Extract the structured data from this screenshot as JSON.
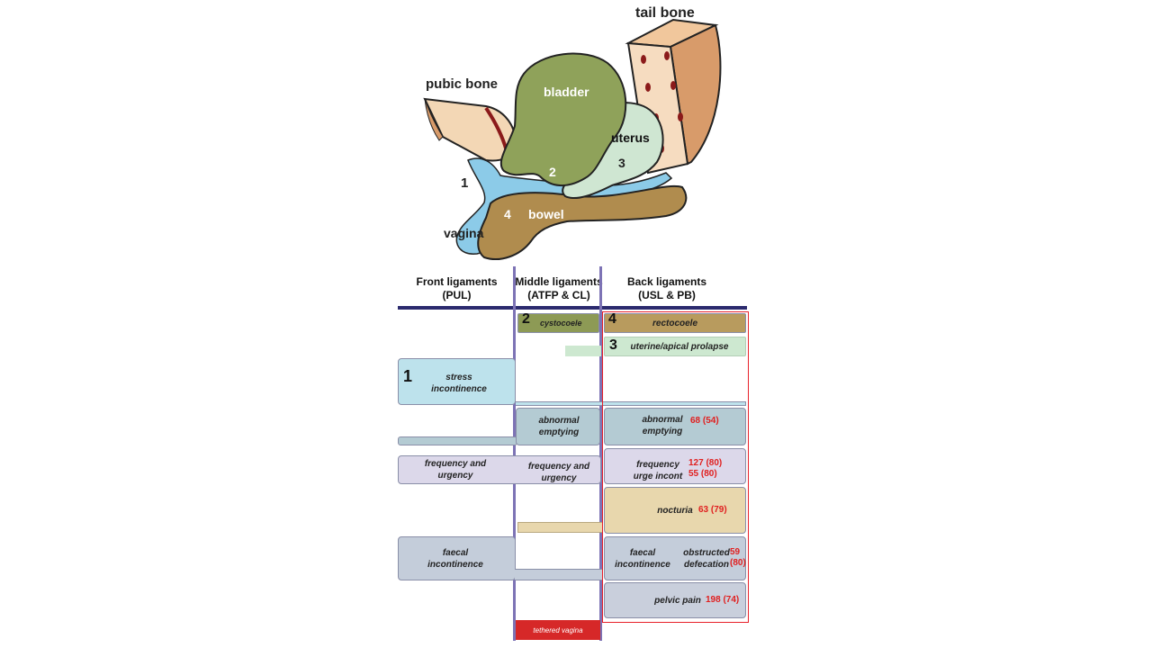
{
  "anatomy": {
    "tail_bone": "tail bone",
    "pubic_bone": "pubic bone",
    "bladder": "bladder",
    "uterus": "uterus",
    "bowel": "bowel",
    "vagina": "vagina",
    "num_1": "1",
    "num_2": "2",
    "num_3": "3",
    "num_4": "4"
  },
  "columns": {
    "front": {
      "title": "Front ligaments",
      "sub": "(PUL)"
    },
    "middle": {
      "title": "Middle ligaments",
      "sub": "(ATFP & CL)"
    },
    "back": {
      "title": "Back ligaments",
      "sub": "(USL & PB)"
    }
  },
  "bars": {
    "cystocoele_num": "2",
    "cystocoele": "cystocoele",
    "rectocoele_num": "4",
    "rectocoele": "rectocoele",
    "uterine_num": "3",
    "uterine": "uterine/apical prolapse",
    "stress_num": "1",
    "stress_l1": "stress",
    "stress_l2": "incontinence",
    "mid_abn_l1": "abnormal",
    "mid_abn_l2": "emptying",
    "back_abn_l1": "abnormal",
    "back_abn_l2": "emptying",
    "back_abn_val": "68 (54)",
    "front_freq_l1": "frequency and",
    "front_freq_l2": "urgency",
    "mid_freq_l1": "frequency and",
    "mid_freq_l2": "urgency",
    "back_freq_l1": "frequency",
    "back_freq_l2": "urge incont",
    "back_freq_v1": "127 (80)",
    "back_freq_v2": "55 (80)",
    "nocturia": "nocturia",
    "nocturia_val": "63 (79)",
    "front_faecal_l1": "faecal",
    "front_faecal_l2": "incontinence",
    "back_faecal_l1": "faecal",
    "back_faecal_l2": "incontinence",
    "obstructed_l1": "obstructed",
    "obstructed_l2": "defecation",
    "obstructed_v1": "59",
    "obstructed_v2": "(80)",
    "pelvic_pain": "pelvic pain",
    "pelvic_pain_val": "198 (74)",
    "tethered": "tethered vagina"
  },
  "colors": {
    "bladder": "#8fa25a",
    "uterus": "#cfe6d2",
    "bowel": "#b08c4e",
    "vagina": "#8ccbe8",
    "pubic_bone": "#f3d7b5",
    "tail_bone": "#f6dcc0",
    "bone_dot": "#8b1a1a",
    "cystocoele_bar": "#8d9a55",
    "rectocoele_bar": "#b89b5e",
    "uterine_bar": "#cde8d0",
    "stress_bar": "#bde2ec",
    "emptying_bar": "#b4cbd3",
    "frequency_bar": "#dcd8ea",
    "nocturia_bar": "#e8d7ad",
    "faecal_bar": "#c4cdda",
    "pelvic_bar": "#c9cfdc",
    "tethered_bar": "#d62828",
    "highlight_box": "#e8202a",
    "divider": "#2b2a6e",
    "column_line": "#7d73b5"
  }
}
